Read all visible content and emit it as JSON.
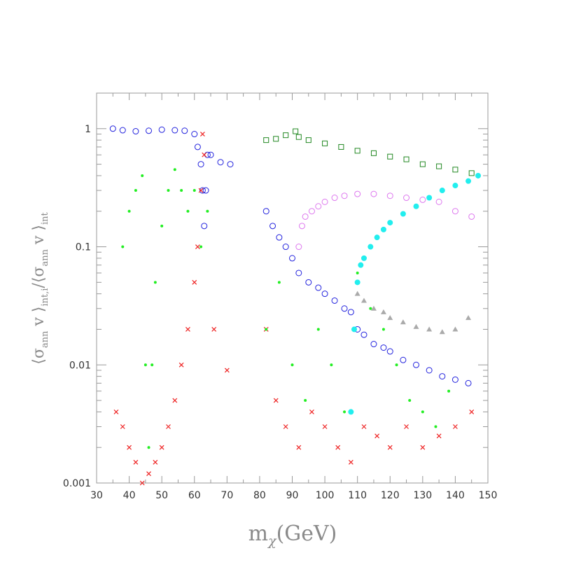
{
  "chart_data": {
    "type": "scatter",
    "title": "",
    "xlabel": "m_χ(GeV)",
    "ylabel": "⟨σ_ann v⟩_int,i / ⟨σ_ann v⟩_int",
    "xlabel_parts": {
      "main": "m",
      "sub": "χ",
      "rest": "(GeV)"
    },
    "ylabel_parts": {
      "a": "⟨σ",
      "a_sub": "ann",
      "b": " v ⟩",
      "b_sub": "int,i",
      "c": "/⟨σ",
      "c_sub": "ann",
      "d": " v ⟩",
      "d_sub": "int"
    },
    "xlim": [
      30,
      150
    ],
    "ylim": [
      0.001,
      2
    ],
    "yscale": "log",
    "grid": false,
    "xticks": [
      30,
      40,
      50,
      60,
      70,
      80,
      90,
      100,
      110,
      120,
      130,
      140,
      150
    ],
    "xtick_labels": [
      "30",
      "40",
      "50",
      "60",
      "70",
      "80",
      "90",
      "100",
      "110",
      "120",
      "130",
      "140",
      "150"
    ],
    "yticks": [
      0.001,
      0.01,
      0.1,
      1
    ],
    "ytick_labels": [
      "0.001",
      "0.01",
      "0.1",
      "1"
    ],
    "colors": {
      "blue": "#2222dd",
      "red": "#ee2222",
      "green": "#22ee22",
      "darkgreen": "#228822",
      "violet": "#dd77ee",
      "cyan": "#22eeee",
      "gray": "#aaaaaa"
    },
    "series": [
      {
        "color": "blue",
        "marker": "circle-open",
        "x": [
          35,
          38,
          42,
          46,
          50,
          54,
          57,
          60,
          61,
          62,
          62.5,
          63,
          63.5,
          64,
          65,
          68,
          71,
          82,
          84,
          86,
          88,
          90,
          92,
          95,
          98,
          100,
          103,
          106,
          108,
          110,
          112,
          115,
          118,
          120,
          124,
          128,
          132,
          136,
          140,
          144
        ],
        "y": [
          1.0,
          0.97,
          0.95,
          0.96,
          0.98,
          0.97,
          0.96,
          0.9,
          0.7,
          0.5,
          0.3,
          0.15,
          0.3,
          0.6,
          0.6,
          0.52,
          0.5,
          0.2,
          0.15,
          0.12,
          0.1,
          0.08,
          0.06,
          0.05,
          0.045,
          0.04,
          0.035,
          0.03,
          0.028,
          0.02,
          0.018,
          0.015,
          0.014,
          0.013,
          0.011,
          0.01,
          0.009,
          0.008,
          0.0075,
          0.007
        ]
      },
      {
        "color": "red",
        "marker": "cross",
        "x": [
          36,
          38,
          40,
          42,
          44,
          46,
          48,
          50,
          52,
          54,
          56,
          58,
          60,
          61,
          62,
          62.5,
          63,
          66,
          70,
          82,
          85,
          88,
          92,
          96,
          100,
          104,
          108,
          112,
          116,
          120,
          125,
          130,
          135,
          140,
          145
        ],
        "y": [
          0.004,
          0.003,
          0.002,
          0.0015,
          0.001,
          0.0012,
          0.0015,
          0.002,
          0.003,
          0.005,
          0.01,
          0.02,
          0.05,
          0.1,
          0.3,
          0.9,
          0.6,
          0.02,
          0.009,
          0.02,
          0.005,
          0.003,
          0.002,
          0.004,
          0.003,
          0.002,
          0.0015,
          0.003,
          0.0025,
          0.002,
          0.003,
          0.002,
          0.0025,
          0.003,
          0.004
        ]
      },
      {
        "color": "green",
        "marker": "dot",
        "x": [
          38,
          40,
          42,
          44,
          45,
          46,
          47,
          48,
          50,
          52,
          54,
          56,
          58,
          60,
          62,
          64,
          82,
          86,
          90,
          94,
          98,
          102,
          106,
          110,
          114,
          118,
          122,
          126,
          130,
          134,
          138
        ],
        "y": [
          0.1,
          0.2,
          0.3,
          0.4,
          0.01,
          0.002,
          0.01,
          0.05,
          0.15,
          0.3,
          0.45,
          0.3,
          0.2,
          0.3,
          0.1,
          0.2,
          0.02,
          0.05,
          0.01,
          0.005,
          0.02,
          0.01,
          0.004,
          0.06,
          0.03,
          0.02,
          0.01,
          0.005,
          0.004,
          0.003,
          0.006
        ]
      },
      {
        "color": "darkgreen",
        "marker": "square-open",
        "x": [
          82,
          85,
          88,
          91,
          92,
          95,
          100,
          105,
          110,
          115,
          120,
          125,
          130,
          135,
          140,
          145
        ],
        "y": [
          0.8,
          0.82,
          0.88,
          0.95,
          0.85,
          0.8,
          0.75,
          0.7,
          0.65,
          0.62,
          0.58,
          0.55,
          0.5,
          0.48,
          0.45,
          0.42
        ]
      },
      {
        "color": "violet",
        "marker": "circle-open",
        "x": [
          92,
          93,
          94,
          96,
          98,
          100,
          103,
          106,
          110,
          115,
          120,
          125,
          130,
          135,
          140,
          145
        ],
        "y": [
          0.1,
          0.15,
          0.18,
          0.2,
          0.22,
          0.24,
          0.26,
          0.27,
          0.28,
          0.28,
          0.27,
          0.26,
          0.25,
          0.24,
          0.2,
          0.18
        ]
      },
      {
        "color": "cyan",
        "marker": "circle-filled",
        "x": [
          108,
          109,
          110,
          111,
          112,
          114,
          116,
          118,
          120,
          124,
          128,
          132,
          136,
          140,
          144,
          147
        ],
        "y": [
          0.004,
          0.02,
          0.05,
          0.07,
          0.08,
          0.1,
          0.12,
          0.14,
          0.16,
          0.19,
          0.22,
          0.26,
          0.3,
          0.33,
          0.36,
          0.4
        ]
      },
      {
        "color": "gray",
        "marker": "triangle",
        "x": [
          110,
          112,
          115,
          118,
          120,
          124,
          128,
          132,
          136,
          140,
          144
        ],
        "y": [
          0.04,
          0.035,
          0.03,
          0.028,
          0.025,
          0.023,
          0.021,
          0.02,
          0.019,
          0.02,
          0.025
        ]
      }
    ]
  }
}
